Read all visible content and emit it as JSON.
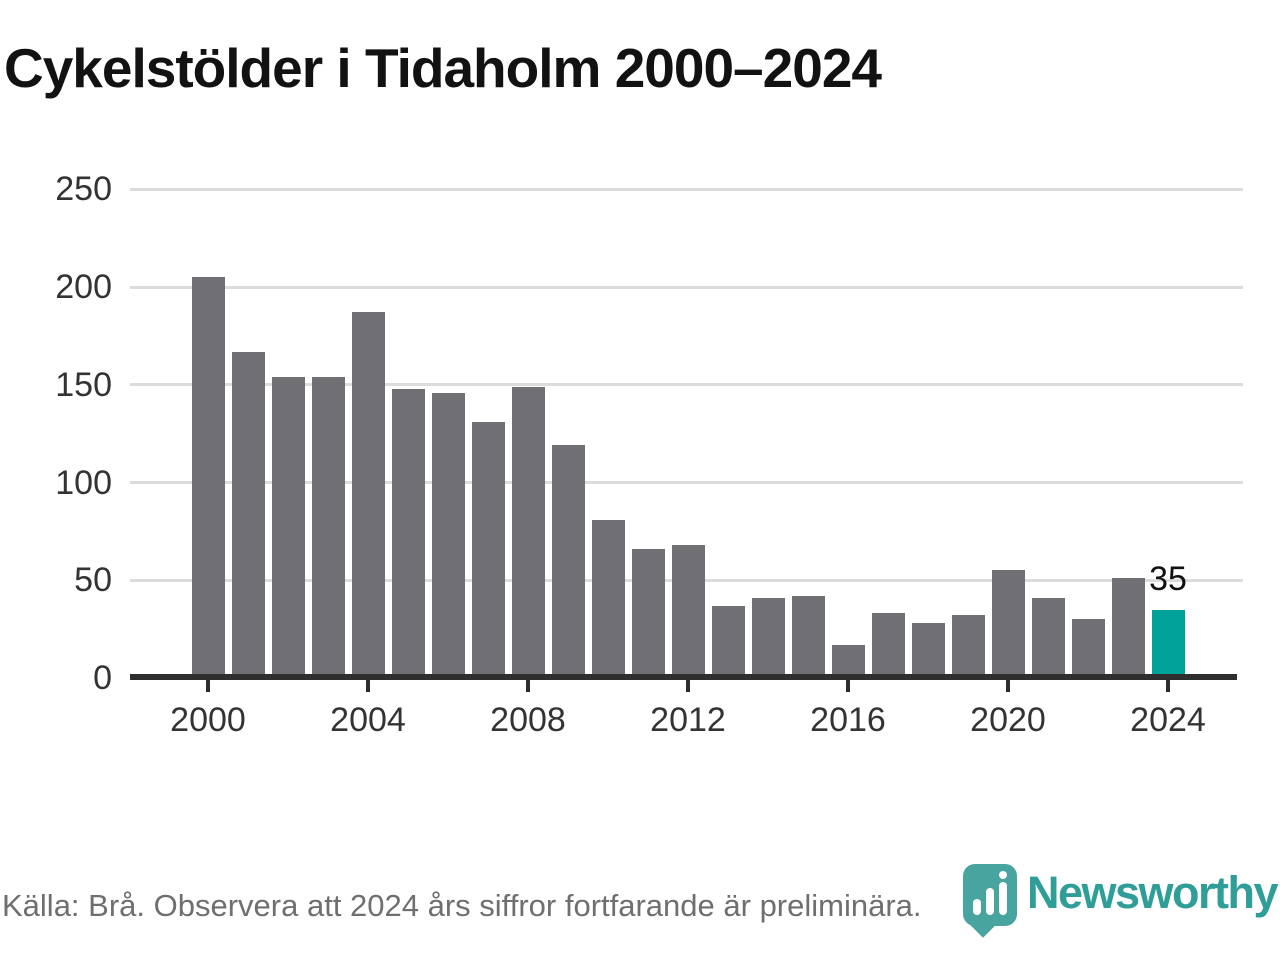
{
  "title": "Cykelstölder i Tidaholm 2000–2024",
  "chart_data": {
    "type": "bar",
    "categories": [
      2000,
      2001,
      2002,
      2003,
      2004,
      2005,
      2006,
      2007,
      2008,
      2009,
      2010,
      2011,
      2012,
      2013,
      2014,
      2015,
      2016,
      2017,
      2018,
      2019,
      2020,
      2021,
      2022,
      2023,
      2024
    ],
    "values": [
      205,
      167,
      154,
      154,
      187,
      148,
      146,
      131,
      149,
      119,
      81,
      66,
      68,
      37,
      41,
      42,
      17,
      33,
      28,
      32,
      55,
      41,
      30,
      51,
      35
    ],
    "title": "Cykelstölder i Tidaholm 2000–2024",
    "xlabel": "",
    "ylabel": "",
    "ylim": [
      0,
      250
    ],
    "y_ticks": [
      0,
      50,
      100,
      150,
      200,
      250
    ],
    "x_tick_years": [
      2000,
      2004,
      2008,
      2012,
      2016,
      2020,
      2024
    ],
    "grid": true,
    "bar_color": "#6f6f74",
    "highlight_color": "#00a29a",
    "highlight_index": 24,
    "value_label": {
      "index": 24,
      "text": "35"
    }
  },
  "footer": {
    "source_note": "Källa: Brå. Observera att 2024 års siffror fortfarande är preliminära."
  },
  "branding": {
    "logo_text": "Newsworthy",
    "logo_color": "#2f9e98",
    "icon_color": "#48a49e",
    "logo_icon": "newsworthy-pin-chart-icon"
  }
}
